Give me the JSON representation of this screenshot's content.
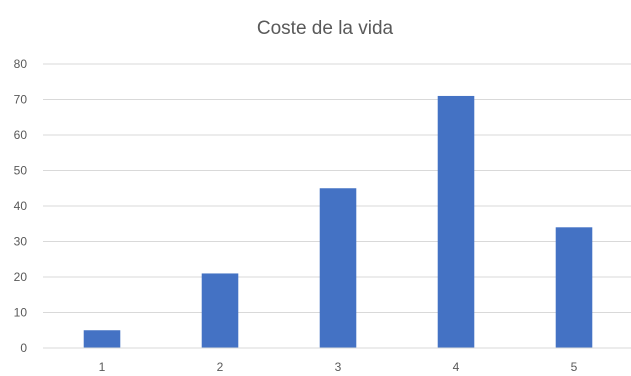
{
  "chart_data": {
    "type": "bar",
    "title": "Coste de la vida",
    "xlabel": "",
    "ylabel": "",
    "categories": [
      "1",
      "2",
      "3",
      "4",
      "5"
    ],
    "values": [
      5,
      21,
      45,
      71,
      34
    ],
    "ylim": [
      0,
      80
    ],
    "yticks": [
      0,
      10,
      20,
      30,
      40,
      50,
      60,
      70,
      80
    ],
    "grid": true,
    "legend": "none",
    "bar_color": "#4472c4"
  }
}
